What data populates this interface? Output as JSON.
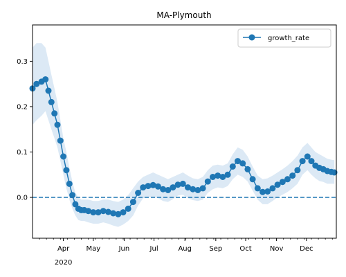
{
  "chart_data": {
    "type": "line",
    "title": "MA-Plymouth",
    "xlabel": "",
    "ylabel": "",
    "legend": {
      "placement": "top-right",
      "entries": [
        "growth_rate"
      ]
    },
    "grid": false,
    "xlim": [
      "2020-03-01",
      "2020-12-31"
    ],
    "ylim": [
      -0.09,
      0.38
    ],
    "colors": {
      "series": "#1f77b4",
      "band": "#dce9f5"
    },
    "y_ticks": [
      {
        "value": 0.0,
        "label": "0.0"
      },
      {
        "value": 0.1,
        "label": "0.1"
      },
      {
        "value": 0.2,
        "label": "0.2"
      },
      {
        "value": 0.3,
        "label": "0.3"
      }
    ],
    "x_ticks": [
      {
        "date": "2020-04-01",
        "label": "Apr",
        "sublabel": "2020"
      },
      {
        "date": "2020-05-01",
        "label": "May"
      },
      {
        "date": "2020-06-01",
        "label": "Jun"
      },
      {
        "date": "2020-07-01",
        "label": "Jul"
      },
      {
        "date": "2020-08-01",
        "label": "Aug"
      },
      {
        "date": "2020-09-01",
        "label": "Sep"
      },
      {
        "date": "2020-10-01",
        "label": "Oct"
      },
      {
        "date": "2020-11-01",
        "label": "Nov"
      },
      {
        "date": "2020-12-01",
        "label": "Dec"
      }
    ],
    "reference_line": {
      "y": 0.0,
      "style": "dashed"
    },
    "series": [
      {
        "name": "growth_rate",
        "x": [
          "2020-03-01",
          "2020-03-05",
          "2020-03-10",
          "2020-03-14",
          "2020-03-17",
          "2020-03-20",
          "2020-03-23",
          "2020-03-26",
          "2020-03-29",
          "2020-04-01",
          "2020-04-04",
          "2020-04-07",
          "2020-04-10",
          "2020-04-13",
          "2020-04-16",
          "2020-04-19",
          "2020-04-22",
          "2020-04-26",
          "2020-05-01",
          "2020-05-06",
          "2020-05-11",
          "2020-05-16",
          "2020-05-21",
          "2020-05-26",
          "2020-05-31",
          "2020-06-05",
          "2020-06-10",
          "2020-06-15",
          "2020-06-20",
          "2020-06-25",
          "2020-06-30",
          "2020-07-05",
          "2020-07-10",
          "2020-07-15",
          "2020-07-20",
          "2020-07-25",
          "2020-07-30",
          "2020-08-04",
          "2020-08-09",
          "2020-08-14",
          "2020-08-19",
          "2020-08-24",
          "2020-08-29",
          "2020-09-03",
          "2020-09-08",
          "2020-09-13",
          "2020-09-18",
          "2020-09-23",
          "2020-09-28",
          "2020-10-03",
          "2020-10-08",
          "2020-10-13",
          "2020-10-18",
          "2020-10-23",
          "2020-10-28",
          "2020-11-02",
          "2020-11-07",
          "2020-11-12",
          "2020-11-17",
          "2020-11-22",
          "2020-11-27",
          "2020-12-02",
          "2020-12-06",
          "2020-12-10",
          "2020-12-14",
          "2020-12-18",
          "2020-12-22",
          "2020-12-26",
          "2020-12-29"
        ],
        "values": [
          0.24,
          0.25,
          0.255,
          0.26,
          0.235,
          0.21,
          0.185,
          0.16,
          0.125,
          0.09,
          0.06,
          0.03,
          0.005,
          -0.015,
          -0.025,
          -0.028,
          -0.028,
          -0.03,
          -0.033,
          -0.033,
          -0.03,
          -0.032,
          -0.035,
          -0.037,
          -0.033,
          -0.025,
          -0.01,
          0.01,
          0.022,
          0.025,
          0.027,
          0.024,
          0.018,
          0.016,
          0.022,
          0.028,
          0.03,
          0.022,
          0.018,
          0.016,
          0.02,
          0.035,
          0.045,
          0.048,
          0.045,
          0.05,
          0.068,
          0.08,
          0.075,
          0.062,
          0.04,
          0.02,
          0.012,
          0.013,
          0.02,
          0.028,
          0.034,
          0.04,
          0.048,
          0.06,
          0.08,
          0.09,
          0.08,
          0.07,
          0.065,
          0.062,
          0.058,
          0.056,
          0.055
        ],
        "band_upper": [
          0.33,
          0.34,
          0.34,
          0.33,
          0.3,
          0.27,
          0.24,
          0.21,
          0.17,
          0.13,
          0.1,
          0.065,
          0.035,
          0.01,
          0.0,
          -0.005,
          -0.005,
          -0.005,
          -0.008,
          -0.008,
          -0.005,
          -0.005,
          -0.008,
          -0.01,
          -0.005,
          0.005,
          0.02,
          0.035,
          0.045,
          0.05,
          0.055,
          0.05,
          0.045,
          0.04,
          0.045,
          0.05,
          0.055,
          0.048,
          0.042,
          0.04,
          0.045,
          0.06,
          0.07,
          0.072,
          0.07,
          0.075,
          0.095,
          0.11,
          0.105,
          0.09,
          0.068,
          0.048,
          0.04,
          0.042,
          0.048,
          0.055,
          0.062,
          0.07,
          0.08,
          0.092,
          0.11,
          0.12,
          0.11,
          0.1,
          0.095,
          0.09,
          0.085,
          0.083,
          0.082
        ],
        "band_lower": [
          0.16,
          0.17,
          0.18,
          0.19,
          0.17,
          0.15,
          0.13,
          0.11,
          0.08,
          0.05,
          0.02,
          -0.005,
          -0.025,
          -0.04,
          -0.05,
          -0.052,
          -0.052,
          -0.055,
          -0.058,
          -0.058,
          -0.055,
          -0.058,
          -0.062,
          -0.065,
          -0.06,
          -0.052,
          -0.04,
          -0.018,
          -0.002,
          0.0,
          0.0,
          -0.002,
          -0.008,
          -0.01,
          -0.004,
          0.004,
          0.006,
          -0.002,
          -0.006,
          -0.008,
          -0.005,
          0.01,
          0.018,
          0.022,
          0.02,
          0.025,
          0.04,
          0.05,
          0.045,
          0.035,
          0.015,
          -0.005,
          -0.015,
          -0.015,
          -0.008,
          0.0,
          0.006,
          0.012,
          0.02,
          0.03,
          0.05,
          0.06,
          0.05,
          0.042,
          0.036,
          0.034,
          0.03,
          0.03,
          0.03
        ]
      }
    ]
  }
}
